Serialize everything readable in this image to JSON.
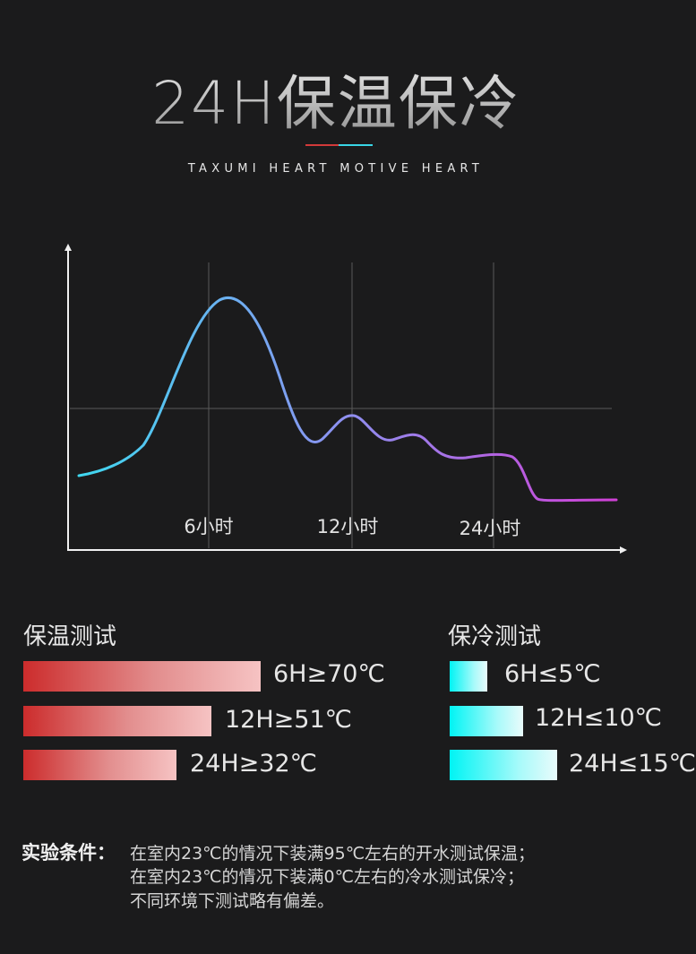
{
  "header": {
    "title": "24H保温保冷",
    "subtitle": "TAXUMI HEART MOTIVE HEART"
  },
  "chart_data": {
    "type": "line",
    "categories": [
      "6小时",
      "12小时",
      "24小时"
    ],
    "gradient_colors": [
      "#3fd8f0",
      "#8f8ff0",
      "#d040d6"
    ]
  },
  "sections": {
    "heat": {
      "title": "保温测试",
      "color": "#cc2c2c",
      "items": [
        {
          "label": "6H≥70℃",
          "value": 70
        },
        {
          "label": "12H≥51℃",
          "value": 51
        },
        {
          "label": "24H≥32℃",
          "value": 32
        }
      ]
    },
    "cold": {
      "title": "保冷测试",
      "color": "#00f4f4",
      "items": [
        {
          "label": "6H≤5℃",
          "value": 5
        },
        {
          "label": "12H≤10℃",
          "value": 10
        },
        {
          "label": "24H≤15℃",
          "value": 15
        }
      ]
    }
  },
  "conditions": {
    "heading": "实验条件：",
    "lines": [
      "在室内23℃的情况下装满95℃左右的开水测试保温；",
      "在室内23℃的情况下装满0℃左右的冷水测试保冷；",
      "不同环境下测试略有偏差。"
    ]
  }
}
